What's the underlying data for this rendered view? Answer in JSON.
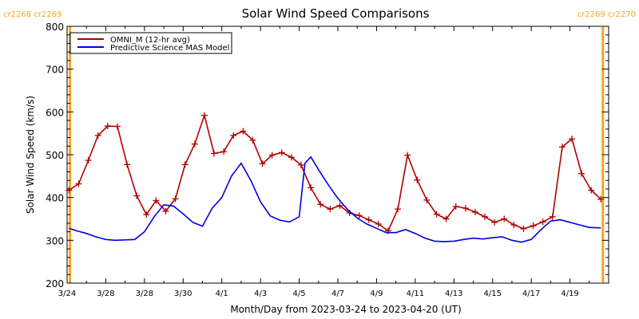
{
  "chart_data": {
    "type": "line",
    "title": "Solar Wind Speed Comparisons",
    "xlabel": "Month/Day from 2023-03-24 to 2023-04-20 (UT)",
    "ylabel": "Solar Wind Speed (km/s)",
    "ylim": [
      200,
      800
    ],
    "xlim_days": [
      0,
      28
    ],
    "yticks": [
      "200",
      "300",
      "400",
      "500",
      "600",
      "700",
      "800"
    ],
    "xticks": [
      {
        "day": 0,
        "label": "3/24"
      },
      {
        "day": 2,
        "label": "3/28"
      },
      {
        "day": 4,
        "label": "3/28"
      },
      {
        "day": 6,
        "label": "3/30"
      },
      {
        "day": 8,
        "label": "4/1"
      },
      {
        "day": 10,
        "label": "4/3"
      },
      {
        "day": 12,
        "label": "4/5"
      },
      {
        "day": 14,
        "label": "4/7"
      },
      {
        "day": 16,
        "label": "4/9"
      },
      {
        "day": 18,
        "label": "4/11"
      },
      {
        "day": 20,
        "label": "4/13"
      },
      {
        "day": 22,
        "label": "4/15"
      },
      {
        "day": 24,
        "label": "4/17"
      },
      {
        "day": 26,
        "label": "4/19"
      }
    ],
    "carrington_markers": [
      {
        "day": 0.15,
        "label": "cr2268 cr2269"
      },
      {
        "day": 27.7,
        "label": "cr2269 cr2270"
      }
    ],
    "legend": {
      "placement": "top-left",
      "entries": [
        "OMNI_M (12-hr avg)",
        "Predictive Science MAS Model"
      ]
    },
    "series": [
      {
        "name": "OMNI_M (12-hr avg)",
        "color": "#b00000",
        "markers": true,
        "x_days": [
          0.1,
          0.6,
          1.1,
          1.6,
          2.1,
          2.6,
          3.1,
          3.6,
          4.1,
          4.6,
          5.1,
          5.6,
          6.1,
          6.6,
          7.1,
          7.6,
          8.1,
          8.6,
          9.1,
          9.6,
          10.1,
          10.6,
          11.1,
          11.6,
          12.1,
          12.6,
          13.1,
          13.6,
          14.1,
          14.6,
          15.1,
          15.6,
          16.1,
          16.6,
          17.1,
          17.6,
          18.1,
          18.6,
          19.1,
          19.6,
          20.1,
          20.6,
          21.1,
          21.6,
          22.1,
          22.6,
          23.1,
          23.6,
          24.1,
          24.6,
          25.1,
          25.6,
          26.1,
          26.6,
          27.1,
          27.6
        ],
        "values": [
          417,
          432,
          487,
          545,
          567,
          566,
          477,
          404,
          360,
          393,
          368,
          397,
          477,
          525,
          592,
          503,
          507,
          545,
          555,
          534,
          479,
          499,
          505,
          494,
          476,
          423,
          384,
          373,
          381,
          364,
          358,
          348,
          338,
          322,
          373,
          499,
          441,
          394,
          361,
          350,
          379,
          375,
          366,
          355,
          342,
          350,
          336,
          327,
          334,
          343,
          355,
          518,
          537,
          456,
          417,
          396
        ]
      },
      {
        "name": "Predictive Science MAS Model",
        "color": "#0000e0",
        "markers": false,
        "x_days": [
          0.1,
          0.5,
          1,
          1.5,
          2,
          2.5,
          3,
          3.5,
          4,
          4.5,
          5,
          5.5,
          6,
          6.5,
          7,
          7.5,
          8,
          8.5,
          9,
          9.5,
          10,
          10.5,
          11,
          11.5,
          12,
          12.3,
          12.6,
          13,
          13.5,
          14,
          14.5,
          15,
          15.5,
          16,
          16.5,
          17,
          17.5,
          18,
          18.5,
          19,
          19.5,
          20,
          20.5,
          21,
          21.5,
          22,
          22.5,
          23,
          23.5,
          24,
          24.5,
          25,
          25.5,
          26,
          26.5,
          27,
          27.6
        ],
        "values": [
          328,
          322,
          316,
          308,
          302,
          300,
          301,
          302,
          320,
          355,
          383,
          380,
          362,
          342,
          333,
          375,
          400,
          450,
          480,
          440,
          390,
          357,
          347,
          343,
          355,
          480,
          495,
          465,
          430,
          398,
          372,
          352,
          338,
          328,
          318,
          318,
          325,
          316,
          305,
          298,
          297,
          298,
          302,
          305,
          303,
          306,
          308,
          300,
          296,
          302,
          325,
          345,
          348,
          342,
          336,
          330,
          329
        ]
      }
    ]
  }
}
